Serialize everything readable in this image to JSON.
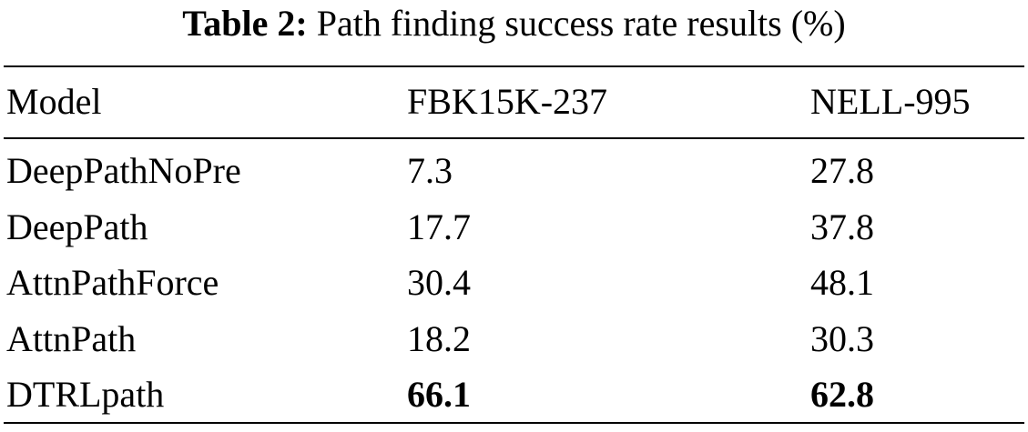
{
  "caption": {
    "label": "Table 2:",
    "text": "Path finding success rate results (%)"
  },
  "table": {
    "header": [
      "Model",
      "FBK15K-237",
      "NELL-995"
    ],
    "rows": [
      [
        "DeepPathNoPre",
        7.3,
        27.8
      ],
      [
        "DeepPath",
        17.7,
        37.8
      ],
      [
        "AttnPathForce",
        30.4,
        48.1
      ],
      [
        "AttnPath",
        18.2,
        30.3
      ],
      [
        "DTRLpath",
        66.1,
        62.8
      ]
    ]
  }
}
